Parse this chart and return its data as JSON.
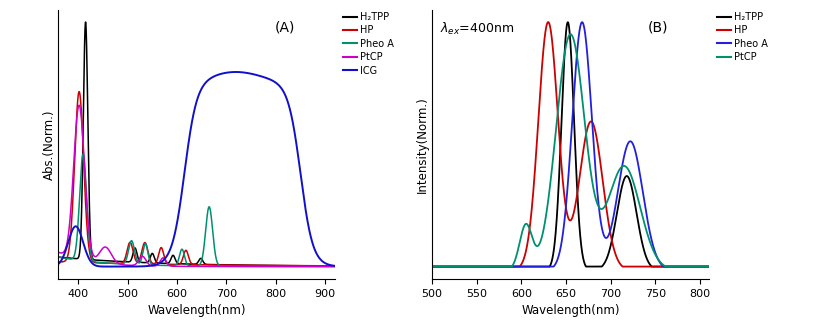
{
  "figsize": [
    8.34,
    3.28
  ],
  "dpi": 100,
  "panel_A": {
    "label": "(A)",
    "xlabel": "Wavelength(nm)",
    "ylabel": "Abs.(Norm.)",
    "xlim": [
      360,
      920
    ],
    "ylim_ratio": 0.85,
    "xticks": [
      400,
      500,
      600,
      700,
      800,
      900
    ],
    "legend": [
      "H₂TPP",
      "HP",
      "Pheo A",
      "PtCP",
      "ICG"
    ],
    "legend_colors": [
      "#000000",
      "#cc0000",
      "#009070",
      "#cc00cc",
      "#1010cc"
    ]
  },
  "panel_B": {
    "label": "(B)",
    "xlabel": "Wavelength(nm)",
    "ylabel": "Intensity(Norm.)",
    "xlim": [
      500,
      810
    ],
    "xticks": [
      500,
      550,
      600,
      650,
      700,
      750,
      800
    ],
    "annotation_lambda": "λ",
    "annotation_text": "=400nm",
    "legend": [
      "H₂TPP",
      "HP",
      "Pheo A",
      "PtCP"
    ],
    "legend_colors": [
      "#000000",
      "#cc0000",
      "#2020dd",
      "#009070"
    ]
  }
}
